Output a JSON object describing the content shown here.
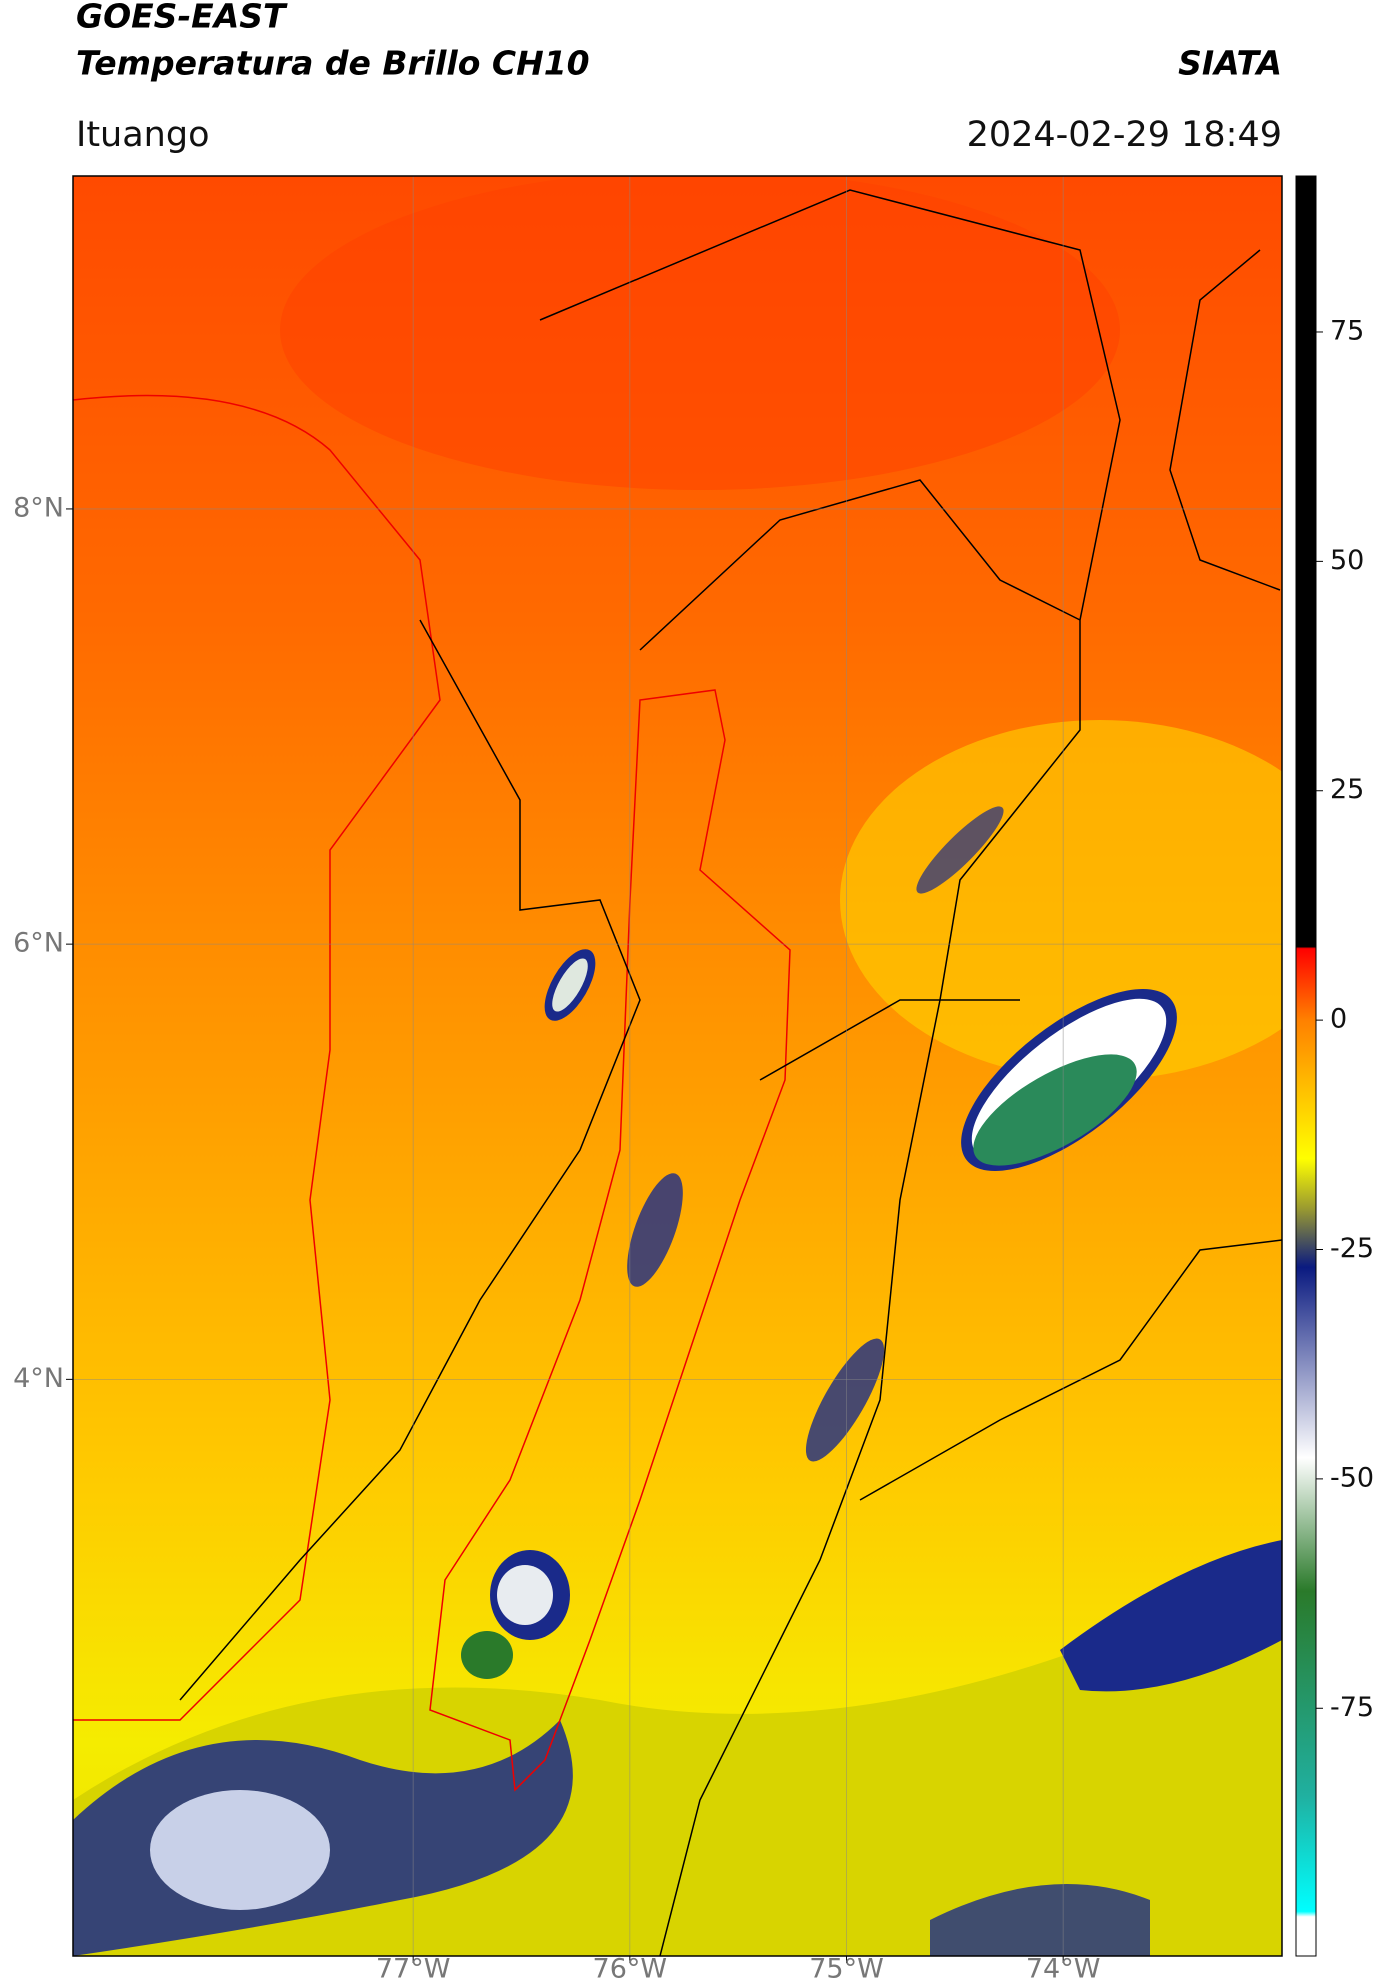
{
  "header": {
    "title": "GOES-EAST",
    "subtitle": "Temperatura de Brillo CH10",
    "brand": "SIATA",
    "location": "Ituango",
    "timestamp": "2024-02-29 18:49"
  },
  "chart_data": {
    "type": "map",
    "xlim": [
      -78.57,
      -72.99
    ],
    "ylim": [
      1.35,
      9.53
    ],
    "xticks": [
      {
        "value": -77,
        "label": "77°W"
      },
      {
        "value": -76,
        "label": "76°W"
      },
      {
        "value": -75,
        "label": "75°W"
      },
      {
        "value": -74,
        "label": "74°W"
      }
    ],
    "yticks": [
      {
        "value": 8,
        "label": "8°N"
      },
      {
        "value": 6,
        "label": "6°N"
      },
      {
        "value": 4,
        "label": "4°N"
      }
    ],
    "grid": true,
    "colorbar": {
      "lim": [
        -102,
        92
      ],
      "ticks": [
        75,
        50,
        25,
        0,
        -25,
        -50,
        -75
      ]
    }
  }
}
